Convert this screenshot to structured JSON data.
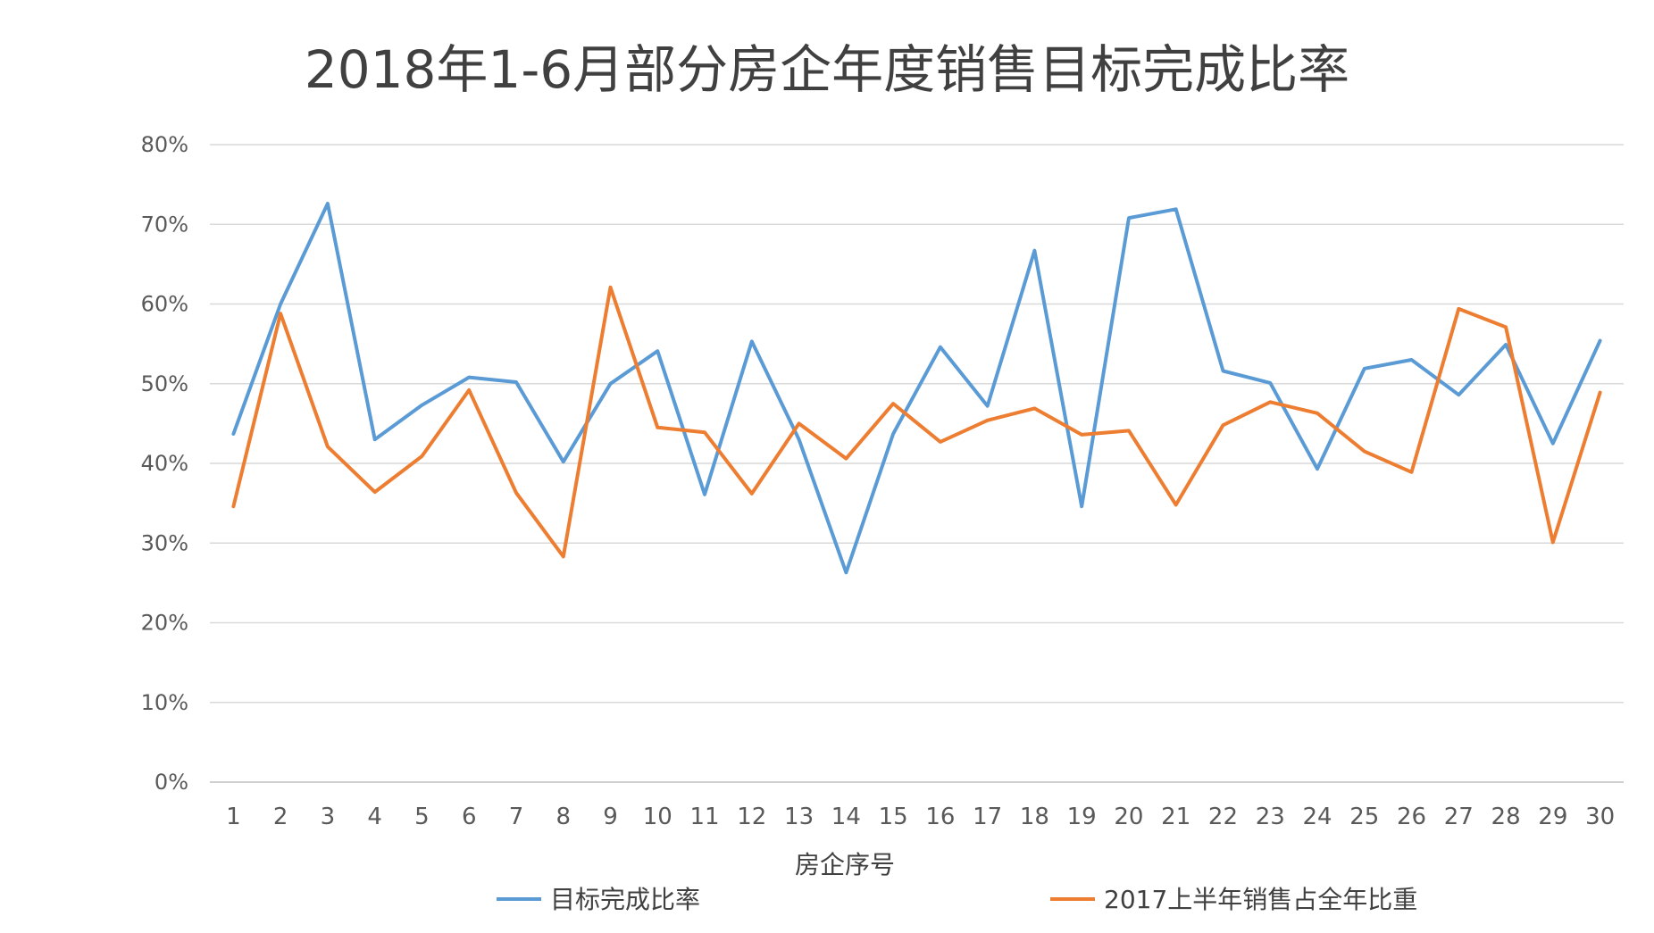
{
  "chart_data": {
    "type": "line",
    "title": "2018年1-6月部分房企年度销售目标完成比率",
    "xlabel": "房企序号",
    "ylabel": "",
    "categories": [
      "1",
      "2",
      "3",
      "4",
      "5",
      "6",
      "7",
      "8",
      "9",
      "10",
      "11",
      "12",
      "13",
      "14",
      "15",
      "16",
      "17",
      "18",
      "19",
      "20",
      "21",
      "22",
      "23",
      "24",
      "25",
      "26",
      "27",
      "28",
      "29",
      "30"
    ],
    "ylim": [
      0,
      0.8
    ],
    "yticks": [
      "0%",
      "10%",
      "20%",
      "30%",
      "40%",
      "50%",
      "60%",
      "70%",
      "80%"
    ],
    "grid": true,
    "legend_position": "bottom",
    "series": [
      {
        "name": "目标完成比率",
        "color": "#5b9bd5",
        "values": [
          0.437,
          0.6,
          0.726,
          0.43,
          0.473,
          0.508,
          0.502,
          0.402,
          0.5,
          0.541,
          0.361,
          0.553,
          0.43,
          0.263,
          0.437,
          0.546,
          0.472,
          0.667,
          0.346,
          0.708,
          0.719,
          0.516,
          0.501,
          0.393,
          0.519,
          0.53,
          0.486,
          0.549,
          0.425,
          0.554
        ]
      },
      {
        "name": "2017上半年销售占全年比重",
        "color": "#ed7d31",
        "values": [
          0.346,
          0.588,
          0.421,
          0.364,
          0.409,
          0.492,
          0.363,
          0.283,
          0.621,
          0.445,
          0.439,
          0.362,
          0.45,
          0.406,
          0.475,
          0.427,
          0.454,
          0.469,
          0.436,
          0.441,
          0.348,
          0.448,
          0.477,
          0.463,
          0.415,
          0.389,
          0.594,
          0.571,
          0.301,
          0.489
        ]
      }
    ]
  }
}
